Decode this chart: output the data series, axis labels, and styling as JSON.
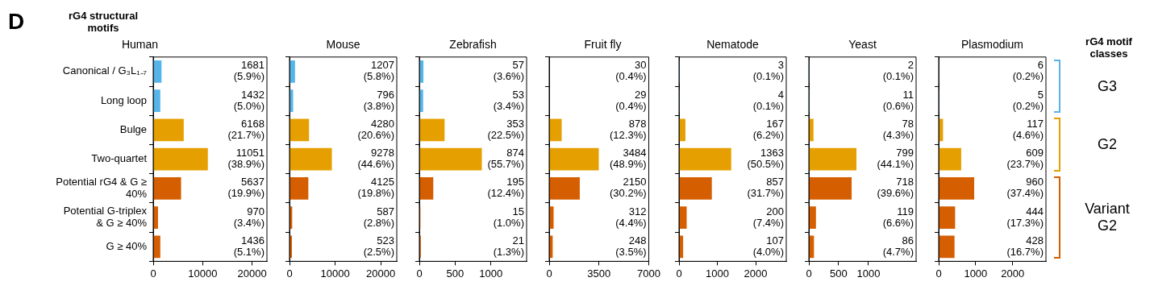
{
  "chart_data": [
    {
      "type": "bar",
      "orientation": "horizontal",
      "title": "Human",
      "ylabel": "rG4 structural motifs",
      "annotations": [
        "D"
      ],
      "categories": [
        "Canonical / G₃L₁₋₇",
        "Long loop",
        "Bulge",
        "Two-quartet",
        "Potential rG4 & G ≥ 40%",
        "Potential G-triplex & G ≥ 40%",
        "G ≥ 40%"
      ],
      "values": [
        1681,
        1432,
        6168,
        11051,
        5637,
        970,
        1436
      ],
      "value_labels": [
        "1681 (5.9%)",
        "1432 (5.0%)",
        "6168 (21.7%)",
        "11051 (38.9%)",
        "5637 (19.9%)",
        "970 (3.4%)",
        "1436 (5.1%)"
      ],
      "colors": [
        "#56b4e9",
        "#56b4e9",
        "#e69f00",
        "#e69f00",
        "#d55e00",
        "#d55e00",
        "#d55e00"
      ],
      "xlim": [
        0,
        23000
      ],
      "xticks": [
        0,
        10000,
        20000
      ]
    },
    {
      "type": "bar",
      "orientation": "horizontal",
      "title": "Mouse",
      "tick_labels": "x",
      "categories": [
        null,
        null,
        null,
        null,
        null,
        null,
        null
      ],
      "values": [
        1207,
        796,
        4280,
        9278,
        4125,
        587,
        523
      ],
      "value_labels": [
        "1207 (5.8%)",
        "796 (3.8%)",
        "4280 (20.6%)",
        "9278 (44.6%)",
        "4125 (19.8%)",
        "587 (2.8%)",
        "523 (2.5%)"
      ],
      "colors": [
        "#56b4e9",
        "#56b4e9",
        "#e69f00",
        "#e69f00",
        "#d55e00",
        "#d55e00",
        "#d55e00"
      ],
      "xlim": [
        0,
        23500
      ],
      "xticks": [
        0,
        10000,
        20000
      ]
    },
    {
      "type": "bar",
      "orientation": "horizontal",
      "title": "Zebrafish",
      "tick_labels": "x",
      "categories": [
        null,
        null,
        null,
        null,
        null,
        null,
        null
      ],
      "values": [
        57,
        53,
        353,
        874,
        195,
        15,
        21
      ],
      "value_labels": [
        "57 (3.6%)",
        "53 (3.4%)",
        "353 (22.5%)",
        "874 (55.7%)",
        "195 (12.4%)",
        "15 (1.0%)",
        "21 (1.3%)"
      ],
      "colors": [
        "#56b4e9",
        "#56b4e9",
        "#e69f00",
        "#e69f00",
        "#d55e00",
        "#d55e00",
        "#d55e00"
      ],
      "xlim": [
        0,
        1500
      ],
      "xticks": [
        0,
        500,
        1000
      ]
    },
    {
      "type": "bar",
      "orientation": "horizontal",
      "title": "Fruit fly",
      "tick_labels": "x",
      "categories": [
        null,
        null,
        null,
        null,
        null,
        null,
        null
      ],
      "values": [
        30,
        29,
        878,
        3484,
        2150,
        312,
        248
      ],
      "value_labels": [
        "30 (0.4%)",
        "29 (0.4%)",
        "878 (12.3%)",
        "3484 (48.9%)",
        "2150 (30.2%)",
        "312 (4.4%)",
        "248 (3.5%)"
      ],
      "colors": [
        "#56b4e9",
        "#56b4e9",
        "#e69f00",
        "#e69f00",
        "#d55e00",
        "#d55e00",
        "#d55e00"
      ],
      "xlim": [
        0,
        7000
      ],
      "xticks": [
        0,
        3500,
        7000
      ]
    },
    {
      "type": "bar",
      "orientation": "horizontal",
      "title": "Nematode",
      "tick_labels": "x",
      "categories": [
        null,
        null,
        null,
        null,
        null,
        null,
        null
      ],
      "values": [
        3,
        4,
        167,
        1363,
        857,
        200,
        107
      ],
      "value_labels": [
        "3 (0.1%)",
        "4 (0.1%)",
        "167 (6.2%)",
        "1363 (50.5%)",
        "857 (31.7%)",
        "200 (7.4%)",
        "107 (4.0%)"
      ],
      "colors": [
        "#56b4e9",
        "#56b4e9",
        "#e69f00",
        "#e69f00",
        "#d55e00",
        "#d55e00",
        "#d55e00"
      ],
      "xlim": [
        0,
        2800
      ],
      "xticks": [
        0,
        1000,
        2000
      ]
    },
    {
      "type": "bar",
      "orientation": "horizontal",
      "title": "Yeast",
      "tick_labels": "x",
      "categories": [
        null,
        null,
        null,
        null,
        null,
        null,
        null
      ],
      "values": [
        2,
        11,
        78,
        799,
        718,
        119,
        86
      ],
      "value_labels": [
        "2 (0.1%)",
        "11 (0.6%)",
        "78 (4.3%)",
        "799 (44.1%)",
        "718 (39.6%)",
        "119 (6.6%)",
        "86 (4.7%)"
      ],
      "colors": [
        "#56b4e9",
        "#56b4e9",
        "#e69f00",
        "#e69f00",
        "#d55e00",
        "#d55e00",
        "#d55e00"
      ],
      "xlim": [
        0,
        1800
      ],
      "xticks": [
        0,
        500,
        1000
      ]
    },
    {
      "type": "bar",
      "orientation": "horizontal",
      "title": "Plasmodium",
      "tick_labels": "x",
      "annotations": [
        "rG4 motif classes",
        "G3",
        "G2",
        "Variant G2"
      ],
      "categories": [
        null,
        null,
        null,
        null,
        null,
        null,
        null
      ],
      "values": [
        6,
        5,
        117,
        609,
        960,
        444,
        428
      ],
      "value_labels": [
        "6 (0.2%)",
        "5 (0.2%)",
        "117 (4.6%)",
        "609 (23.7%)",
        "960 (37.4%)",
        "444 (17.3%)",
        "428 (16.7%)"
      ],
      "colors": [
        "#56b4e9",
        "#56b4e9",
        "#e69f00",
        "#e69f00",
        "#d55e00",
        "#d55e00",
        "#d55e00"
      ],
      "xlim": [
        0,
        2900
      ],
      "xticks": [
        0,
        1000,
        2000
      ]
    }
  ]
}
